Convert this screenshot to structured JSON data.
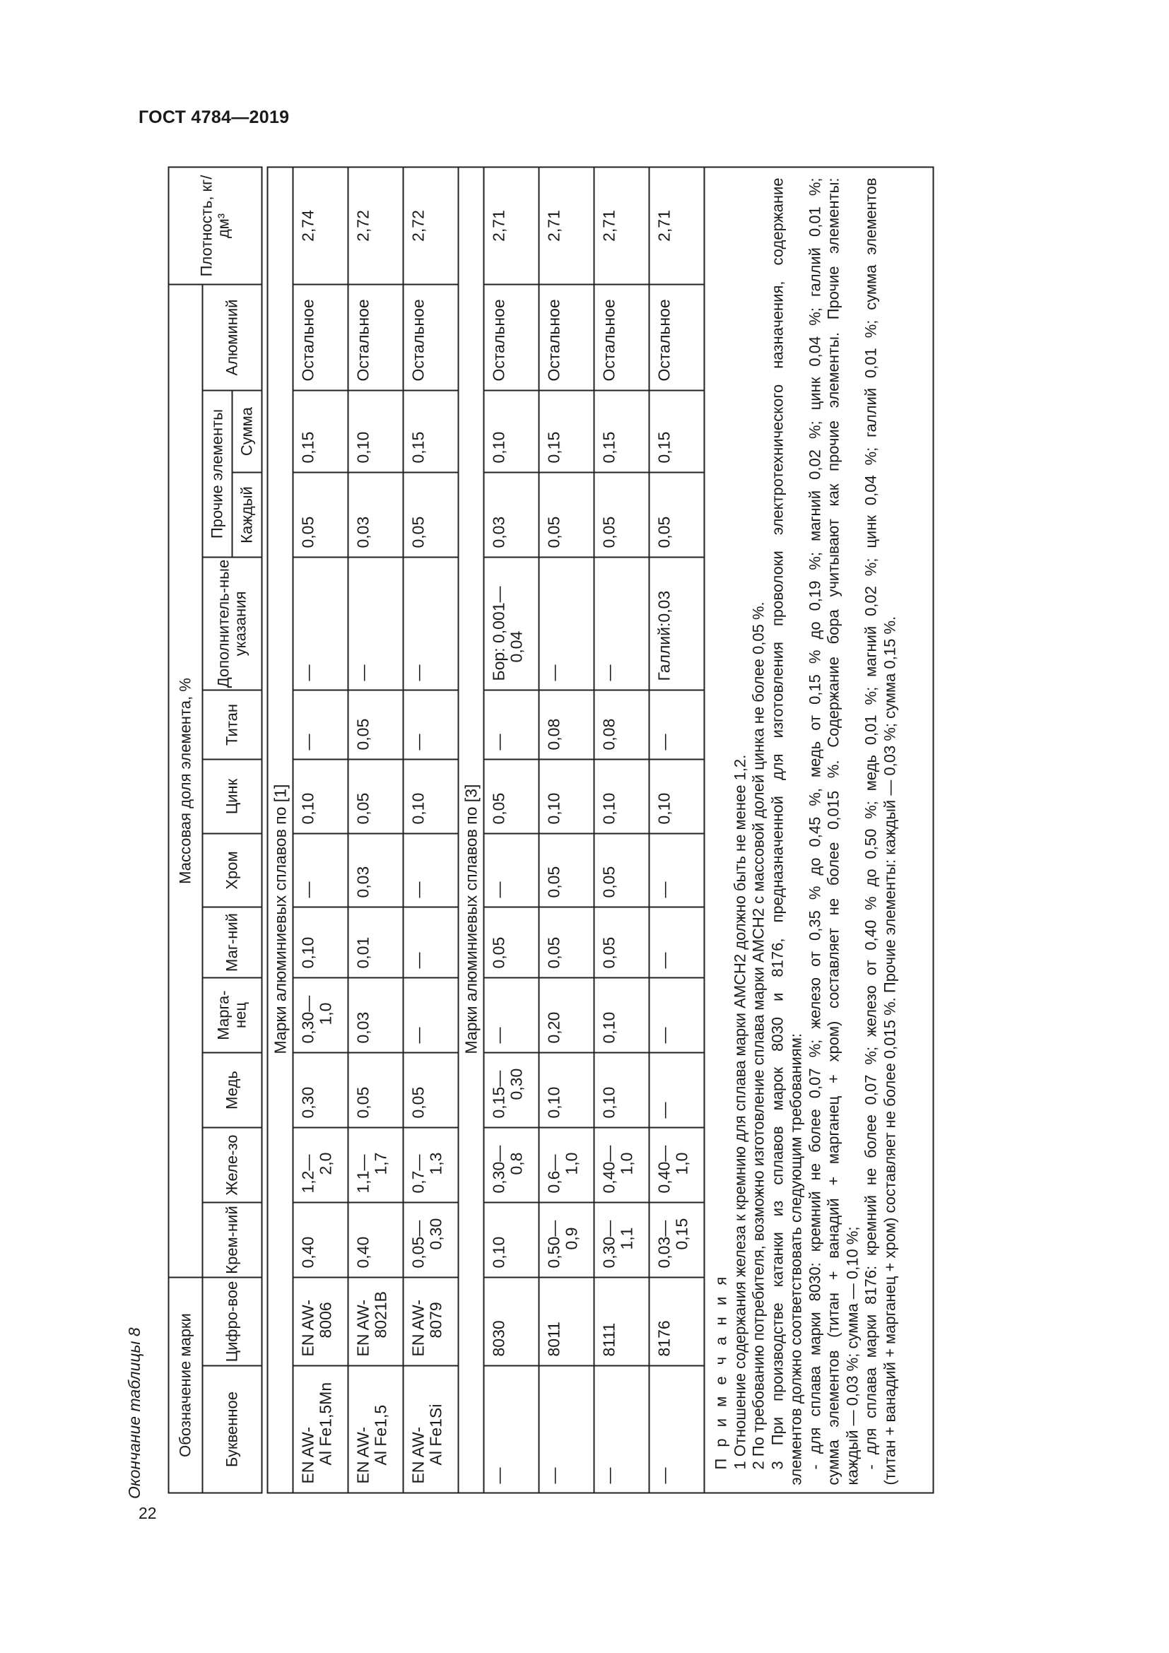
{
  "header": {
    "doc_title": "ГОСТ 4784—2019",
    "page_number": "22"
  },
  "caption": "Окончание таблицы 8",
  "table": {
    "head": {
      "designation": "Обозначение марки",
      "mass_fraction": "Массовая доля элемента, %",
      "density": "Плотность, кг/дм³",
      "letter": "Буквенное",
      "digital": "Цифро-вое",
      "silicon": "Крем-ний",
      "iron": "Желе-зо",
      "copper": "Медь",
      "manganese": "Марга-нец",
      "magnesium": "Маг-ний",
      "chromium": "Хром",
      "zinc": "Цинк",
      "titanium": "Титан",
      "additional": "Дополнитель-ные указания",
      "other": "Прочие элементы",
      "each": "Каждый",
      "sum": "Сумма",
      "aluminium": "Алюминий"
    },
    "groups": [
      {
        "title": "Марки алюминиевых сплавов по [1]",
        "rows": [
          [
            "EN AW-|Al Fe1,5Mn",
            "EN AW-|8006",
            "0,40",
            "1,2—2,0",
            "0,30",
            "0,30—1,0",
            "0,10",
            "—",
            "0,10",
            "—",
            "—",
            "0,05",
            "0,15",
            "Остальное",
            "2,74"
          ],
          [
            "EN AW-|Al Fe1,5",
            "EN AW-|8021B",
            "0,40",
            "1,1—1,7",
            "0,05",
            "0,03",
            "0,01",
            "0,03",
            "0,05",
            "0,05",
            "—",
            "0,03",
            "0,10",
            "Остальное",
            "2,72"
          ],
          [
            "EN AW-|Al Fe1Si",
            "EN AW-|8079",
            "0,05—0,30",
            "0,7—1,3",
            "0,05",
            "—",
            "—",
            "—",
            "0,10",
            "—",
            "—",
            "0,05",
            "0,15",
            "Остальное",
            "2,72"
          ]
        ]
      },
      {
        "title": "Марки алюминиевых сплавов по [3]",
        "rows": [
          [
            "—",
            "8030",
            "0,10",
            "0,30—0,8",
            "0,15—0,30",
            "—",
            "0,05",
            "—",
            "0,05",
            "—",
            "Бор: 0,001—0,04",
            "0,03",
            "0,10",
            "Остальное",
            "2,71"
          ],
          [
            "—",
            "8011",
            "0,50—0,9",
            "0,6—1,0",
            "0,10",
            "0,20",
            "0,05",
            "0,05",
            "0,10",
            "0,08",
            "—",
            "0,05",
            "0,15",
            "Остальное",
            "2,71"
          ],
          [
            "—",
            "8111",
            "0,30—1,1",
            "0,40—1,0",
            "0,10",
            "0,10",
            "0,05",
            "0,05",
            "0,10",
            "0,08",
            "—",
            "0,05",
            "0,15",
            "Остальное",
            "2,71"
          ],
          [
            "—",
            "8176",
            "0,03—0,15",
            "0,40—1,0",
            "—",
            "—",
            "—",
            "—",
            "0,10",
            "—",
            "Галлий:0,03",
            "0,05",
            "0,15",
            "Остальное",
            "2,71"
          ]
        ]
      }
    ],
    "notes": [
      "П р и м е ч а н и я",
      "1 Отношение содержания железа к кремнию для сплава марки АМСН2 должно быть не менее 1,2.",
      "2 По требованию потребителя, возможно изготовление сплава марки АМСН2 с массовой долей цинка не более 0,05 %.",
      "3 При производстве катанки из сплавов марок 8030 и 8176, предназначенной для изготовления проволоки электротехнического назначения, содержание",
      "элементов должно соответствовать следующим требованиям:",
      "- для сплава марки 8030: кремний не более 0,07 %; железо от 0,35 % до 0,45 %, медь от 0,15 % до 0,19 %; магний 0,02 %;  цинк 0,04 %; галлий 0,01 %;",
      "сумма элементов (титан + ванадий + марганец + хром) составляет не более 0,015 %. Содержание бора учитывают как прочие элементы. Прочие элементы:",
      "каждый — 0,03 %; сумма — 0,10 %;",
      "- для сплава марки 8176: кремний не более 0,07 %; железо от 0,40 % до 0,50 %; медь 0,01 %; магний 0,02 %; цинк 0,04 %;  галлий 0,01 %; сумма элементов",
      "(титан + ванадий + марганец + хром) составляет не более 0,015 %. Прочие элементы:  каждый — 0,03 %; сумма 0,15 %."
    ]
  }
}
